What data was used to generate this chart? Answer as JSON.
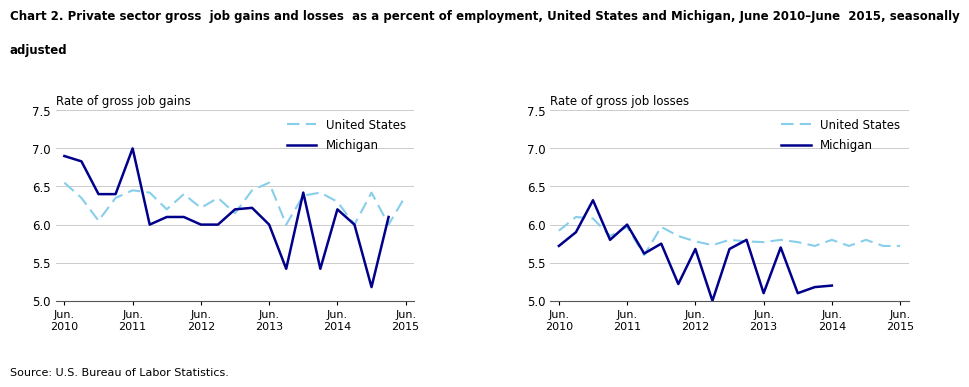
{
  "title_line1": "Chart 2. Private sector gross  job gains and losses  as a percent of employment, United States and Michigan, June 2010–June  2015, seasonally",
  "title_line2": "adjusted",
  "source": "Source: U.S. Bureau of Labor Statistics.",
  "left_ylabel": "Rate of gross job gains",
  "right_ylabel": "Rate of gross job losses",
  "xtick_labels": [
    "Jun.\n2010",
    "Jun.\n2011",
    "Jun.\n2012",
    "Jun.\n2013",
    "Jun.\n2014",
    "Jun.\n2015"
  ],
  "xtick_positions": [
    0,
    4,
    8,
    12,
    16,
    20
  ],
  "xlim": [
    -0.5,
    20.5
  ],
  "ylim": [
    5.0,
    7.5
  ],
  "yticks": [
    5.0,
    5.5,
    6.0,
    6.5,
    7.0,
    7.5
  ],
  "gains_us_x": [
    0,
    1,
    2,
    3,
    4,
    5,
    6,
    7,
    8,
    9,
    10,
    11,
    12,
    13,
    14,
    15,
    16,
    17,
    18,
    19,
    20
  ],
  "gains_us": [
    6.55,
    6.35,
    6.05,
    6.35,
    6.45,
    6.42,
    6.2,
    6.4,
    6.22,
    6.35,
    6.15,
    6.45,
    6.55,
    6.0,
    6.38,
    6.42,
    6.3,
    6.0,
    6.42,
    6.0,
    6.38
  ],
  "gains_mi_x": [
    0,
    1,
    2,
    3,
    4,
    5,
    6,
    7,
    8,
    9,
    10,
    11,
    12,
    13,
    14,
    15,
    16,
    17,
    18,
    19
  ],
  "gains_mi": [
    6.9,
    6.83,
    6.4,
    6.4,
    7.0,
    6.0,
    6.1,
    6.1,
    6.0,
    6.0,
    6.2,
    6.22,
    6.0,
    5.42,
    6.42,
    5.42,
    6.2,
    6.0,
    5.18,
    6.1
  ],
  "losses_us_x": [
    0,
    1,
    2,
    3,
    4,
    5,
    6,
    7,
    8,
    9,
    10,
    11,
    12,
    13,
    14,
    15,
    16,
    17,
    18,
    19,
    20
  ],
  "losses_us": [
    5.92,
    6.1,
    6.08,
    5.85,
    5.97,
    5.6,
    5.97,
    5.85,
    5.78,
    5.73,
    5.8,
    5.78,
    5.77,
    5.8,
    5.77,
    5.72,
    5.8,
    5.72,
    5.8,
    5.72,
    5.72
  ],
  "losses_mi_x": [
    0,
    1,
    2,
    3,
    4,
    5,
    6,
    7,
    8,
    9,
    10,
    11,
    12,
    13,
    14,
    15,
    16
  ],
  "losses_mi": [
    5.72,
    5.9,
    6.32,
    5.8,
    6.0,
    5.62,
    5.75,
    5.22,
    5.68,
    5.0,
    5.68,
    5.8,
    5.1,
    5.7,
    5.1,
    5.18,
    5.2
  ],
  "us_color": "#87CEEB",
  "mi_color": "#00008B",
  "legend_us": "United States",
  "legend_mi": "Michigan",
  "grid_color": "#cccccc"
}
